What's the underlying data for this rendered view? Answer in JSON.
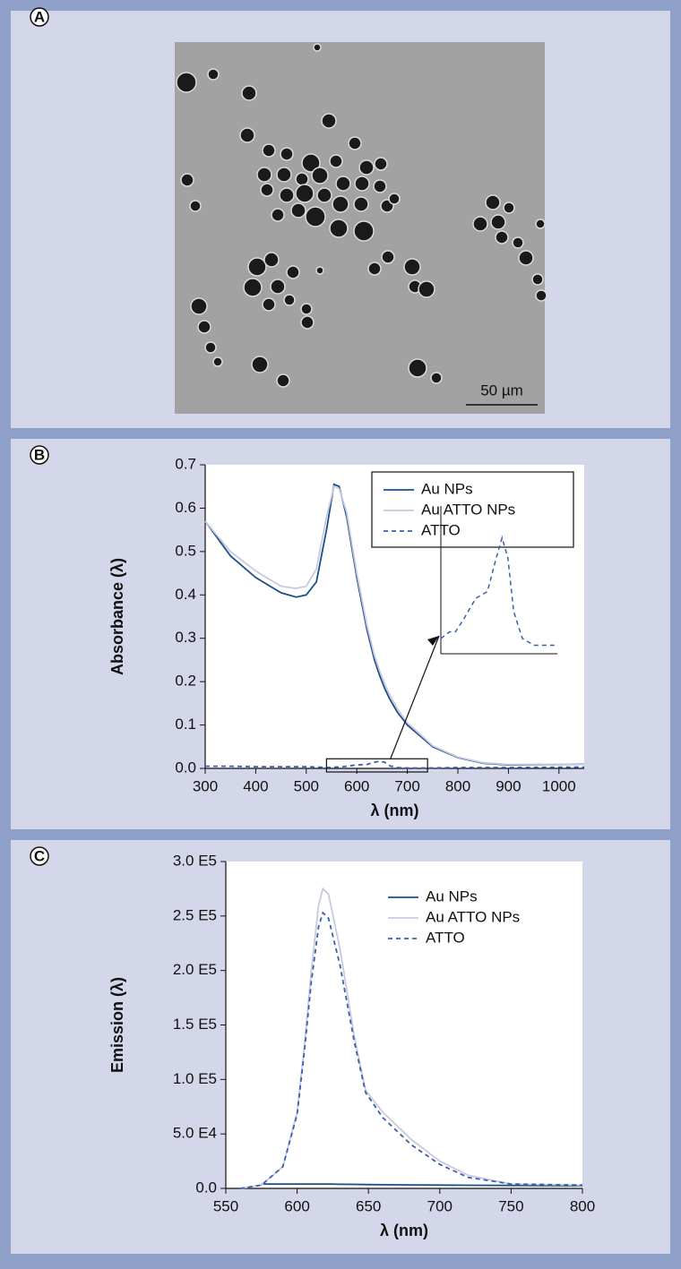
{
  "panel_a": {
    "label": "A",
    "scale_bar": "50 µm"
  },
  "chart_data": [
    {
      "type": "line",
      "panel_label": "B",
      "xlabel": "λ (nm)",
      "ylabel": "Absorbance (λ)",
      "x": [
        300,
        350,
        400,
        450,
        480,
        500,
        520,
        540,
        555,
        565,
        580,
        600,
        620,
        635,
        645,
        655,
        665,
        680,
        700,
        740,
        750,
        800,
        850,
        900,
        1050
      ],
      "series": [
        {
          "name": "Au NPs",
          "color": "#1c4f8c",
          "dash": false,
          "values": [
            0.57,
            0.49,
            0.44,
            0.405,
            0.395,
            0.4,
            0.43,
            0.55,
            0.655,
            0.65,
            0.58,
            0.44,
            0.32,
            0.25,
            0.215,
            0.185,
            0.16,
            0.13,
            0.1,
            0.06,
            0.05,
            0.025,
            0.012,
            0.008,
            0.01
          ]
        },
        {
          "name": "Au ATTO NPs",
          "color": "#c9c9de",
          "dash": false,
          "values": [
            0.57,
            0.5,
            0.455,
            0.42,
            0.415,
            0.42,
            0.46,
            0.58,
            0.65,
            0.645,
            0.59,
            0.45,
            0.33,
            0.26,
            0.225,
            0.195,
            0.17,
            0.138,
            0.105,
            0.063,
            0.052,
            0.026,
            0.013,
            0.009,
            0.01
          ]
        },
        {
          "name": "ATTO",
          "color": "#3a5fb0",
          "dash": true,
          "values": [
            0.005,
            0.005,
            0.004,
            0.004,
            0.004,
            0.004,
            0.003,
            0.002,
            0.003,
            0.003,
            0.005,
            0.008,
            0.009,
            0.014,
            0.017,
            0.014,
            0.006,
            0.002,
            0.001,
            0.001,
            0.001,
            0.002,
            0.002,
            0.002,
            0.003
          ]
        }
      ],
      "xlim": [
        300,
        1050
      ],
      "xticks": [
        300,
        400,
        500,
        600,
        700,
        800,
        900,
        1000
      ],
      "ylim": [
        0,
        0.7
      ],
      "yticks": [
        {
          "value": 0,
          "label": "0.0"
        },
        0.1,
        0.2,
        0.3,
        0.4,
        0.5,
        0.6,
        0.7
      ],
      "legend": "upper right",
      "legend_frame": true,
      "zoom": {
        "series": 2,
        "xlim": [
          540,
          740
        ],
        "ylim": [
          0,
          0.018
        ]
      }
    },
    {
      "type": "line",
      "panel_label": "C",
      "xlabel": "λ (nm)",
      "ylabel": "Emission (λ)",
      "x": [
        560,
        575,
        590,
        600,
        605,
        610,
        615,
        618,
        622,
        630,
        640,
        648,
        660,
        680,
        700,
        720,
        750,
        800
      ],
      "series": [
        {
          "name": "Au NPs",
          "color": "#1c4f8c",
          "dash": false,
          "values": [
            null,
            4000,
            4000,
            4000,
            4000,
            4000,
            4000,
            4000,
            4000,
            3800,
            3700,
            3500,
            3400,
            3200,
            3000,
            2900,
            2700,
            2500
          ]
        },
        {
          "name": "Au ATTO NPs",
          "color": "#c9c9de",
          "dash": false,
          "values": [
            0,
            3000,
            20000,
            70000,
            130000,
            200000,
            260000,
            275000,
            270000,
            220000,
            140000,
            90000,
            70000,
            45000,
            25000,
            12000,
            4000,
            3000
          ]
        },
        {
          "name": "ATTO",
          "color": "#3a5fb0",
          "dash": true,
          "values": [
            0,
            3000,
            20000,
            68000,
            125000,
            190000,
            240000,
            253000,
            248000,
            205000,
            135000,
            88000,
            65000,
            40000,
            22000,
            10000,
            4000,
            3000
          ]
        }
      ],
      "xlim": [
        550,
        800
      ],
      "xticks": [
        550,
        600,
        650,
        700,
        750,
        800
      ],
      "ylim": [
        0,
        300000
      ],
      "yticks": [
        {
          "value": 0,
          "label": "0.0"
        },
        {
          "value": 50000,
          "label": "5.0 E4"
        },
        {
          "value": 100000,
          "label": "1.0 E5"
        },
        {
          "value": 150000,
          "label": "1.5 E5"
        },
        {
          "value": 200000,
          "label": "2.0 E5"
        },
        {
          "value": 250000,
          "label": "2.5 E5"
        },
        {
          "value": 300000,
          "label": "3.0 E5"
        }
      ],
      "legend": "upper right",
      "legend_frame": false
    }
  ]
}
